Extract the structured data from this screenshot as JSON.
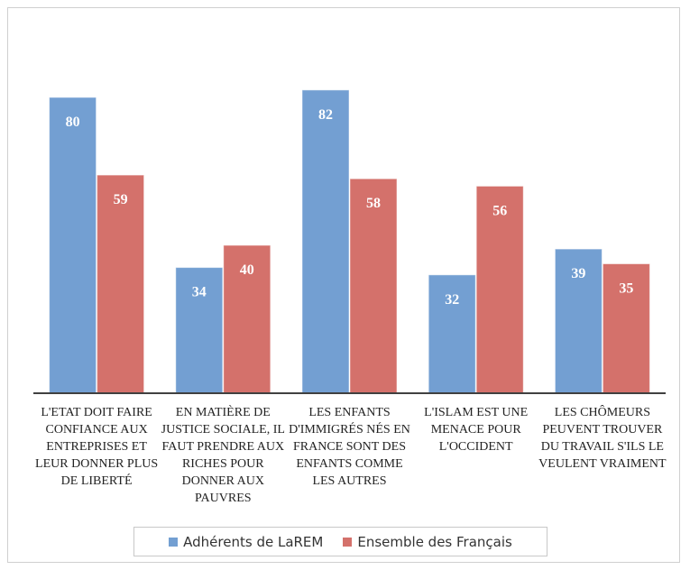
{
  "chart_data": {
    "type": "bar",
    "categories": [
      "L'ETAT DOIT FAIRE CONFIANCE AUX ENTREPRISES ET LEUR DONNER PLUS DE LIBERTÉ",
      "EN MATIÈRE DE JUSTICE SOCIALE, IL FAUT PRENDRE AUX RICHES POUR DONNER AUX PAUVRES",
      "LES ENFANTS D'IMMIGRÉS NÉS EN FRANCE SONT DES ENFANTS COMME LES AUTRES",
      "L'ISLAM EST UNE MENACE POUR L'OCCIDENT",
      "LES CHÔMEURS PEUVENT TROUVER DU TRAVAIL S'ILS LE VEULENT VRAIMENT"
    ],
    "series": [
      {
        "name": "Adhérents de LaREM",
        "color": "#739fd2",
        "values": [
          80,
          34,
          82,
          32,
          39
        ]
      },
      {
        "name": "Ensemble des Français",
        "color": "#d4716b",
        "values": [
          59,
          40,
          58,
          56,
          35
        ]
      }
    ],
    "ylim": [
      0,
      100
    ],
    "legend": "bottom"
  }
}
